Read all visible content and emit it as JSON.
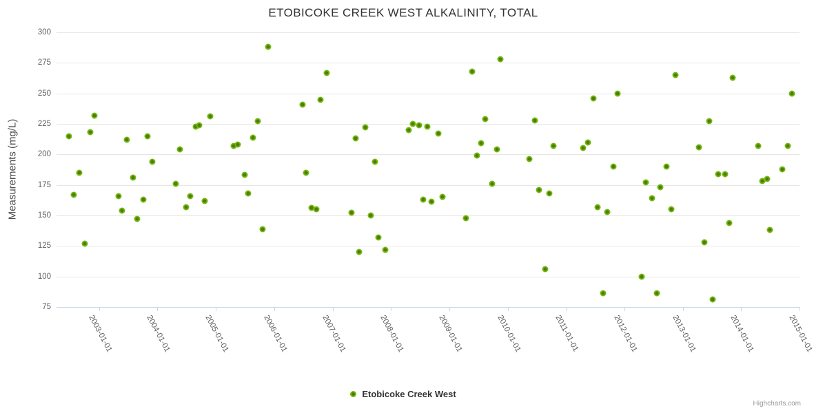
{
  "chart": {
    "credits": "Highcharts.com"
  },
  "colors": {
    "series_green_outer": "#74b70e",
    "series_green_inner": "#4c7d0a",
    "grid": "#e6e6e6",
    "axis": "#ccd6eb",
    "title_text": "#333333",
    "axis_label_text": "#606060"
  },
  "chart_data": {
    "type": "scatter",
    "title": "ETOBICOKE CREEK WEST ALKALINITY, TOTAL",
    "xlabel": "",
    "ylabel": "Measurements (mg/L)",
    "xlim": [
      2002.27,
      2015.0
    ],
    "ylim": [
      75,
      300
    ],
    "y_ticks": [
      75,
      100,
      125,
      150,
      175,
      200,
      225,
      250,
      275,
      300
    ],
    "x_ticks": [
      2003,
      2004,
      2005,
      2006,
      2007,
      2008,
      2009,
      2010,
      2011,
      2012,
      2013,
      2014,
      2015
    ],
    "x_tick_labels": [
      "2003-01-01",
      "2004-01-01",
      "2005-01-01",
      "2006-01-01",
      "2007-01-01",
      "2008-01-01",
      "2009-01-01",
      "2010-01-01",
      "2011-01-01",
      "2012-01-01",
      "2013-01-01",
      "2014-01-01",
      "2015-01-01"
    ],
    "grid": true,
    "legend_position": "bottom-center",
    "series": [
      {
        "name": "Etobicoke Creek West",
        "color": "#74b70e",
        "points": [
          [
            2002.48,
            215
          ],
          [
            2002.57,
            167
          ],
          [
            2002.66,
            185
          ],
          [
            2002.75,
            127
          ],
          [
            2002.85,
            218
          ],
          [
            2002.92,
            232
          ],
          [
            2003.33,
            166
          ],
          [
            2003.39,
            154
          ],
          [
            2003.48,
            212
          ],
          [
            2003.58,
            181
          ],
          [
            2003.65,
            147
          ],
          [
            2003.76,
            163
          ],
          [
            2003.83,
            215
          ],
          [
            2003.91,
            194
          ],
          [
            2004.31,
            176
          ],
          [
            2004.38,
            204
          ],
          [
            2004.49,
            157
          ],
          [
            2004.56,
            166
          ],
          [
            2004.66,
            223
          ],
          [
            2004.72,
            224
          ],
          [
            2004.81,
            162
          ],
          [
            2004.9,
            231
          ],
          [
            2005.3,
            207
          ],
          [
            2005.38,
            208
          ],
          [
            2005.49,
            183
          ],
          [
            2005.55,
            168
          ],
          [
            2005.64,
            214
          ],
          [
            2005.72,
            227
          ],
          [
            2005.8,
            139
          ],
          [
            2005.89,
            288
          ],
          [
            2006.48,
            241
          ],
          [
            2006.54,
            185
          ],
          [
            2006.64,
            156
          ],
          [
            2006.72,
            155
          ],
          [
            2006.79,
            245
          ],
          [
            2006.9,
            267
          ],
          [
            2007.32,
            152
          ],
          [
            2007.4,
            213
          ],
          [
            2007.46,
            120
          ],
          [
            2007.56,
            222
          ],
          [
            2007.66,
            150
          ],
          [
            2007.73,
            194
          ],
          [
            2007.79,
            132
          ],
          [
            2007.9,
            122
          ],
          [
            2008.31,
            220
          ],
          [
            2008.37,
            225
          ],
          [
            2008.48,
            224
          ],
          [
            2008.55,
            163
          ],
          [
            2008.62,
            223
          ],
          [
            2008.69,
            161
          ],
          [
            2008.81,
            217
          ],
          [
            2008.88,
            165
          ],
          [
            2009.29,
            148
          ],
          [
            2009.39,
            268
          ],
          [
            2009.47,
            199
          ],
          [
            2009.54,
            209
          ],
          [
            2009.62,
            229
          ],
          [
            2009.73,
            176
          ],
          [
            2009.81,
            204
          ],
          [
            2009.87,
            278
          ],
          [
            2010.37,
            196
          ],
          [
            2010.46,
            228
          ],
          [
            2010.54,
            171
          ],
          [
            2010.64,
            106
          ],
          [
            2010.71,
            168
          ],
          [
            2010.79,
            207
          ],
          [
            2011.29,
            205
          ],
          [
            2011.37,
            210
          ],
          [
            2011.47,
            246
          ],
          [
            2011.54,
            157
          ],
          [
            2011.63,
            86
          ],
          [
            2011.7,
            153
          ],
          [
            2011.81,
            190
          ],
          [
            2011.88,
            250
          ],
          [
            2012.3,
            100
          ],
          [
            2012.37,
            177
          ],
          [
            2012.47,
            164
          ],
          [
            2012.55,
            86
          ],
          [
            2012.62,
            173
          ],
          [
            2012.72,
            190
          ],
          [
            2012.8,
            155
          ],
          [
            2012.88,
            265
          ],
          [
            2013.28,
            206
          ],
          [
            2013.37,
            128
          ],
          [
            2013.45,
            227
          ],
          [
            2013.51,
            81
          ],
          [
            2013.61,
            184
          ],
          [
            2013.72,
            184
          ],
          [
            2013.79,
            144
          ],
          [
            2013.86,
            263
          ],
          [
            2014.29,
            207
          ],
          [
            2014.36,
            178
          ],
          [
            2014.44,
            180
          ],
          [
            2014.49,
            138
          ],
          [
            2014.71,
            188
          ],
          [
            2014.8,
            207
          ],
          [
            2014.87,
            250
          ]
        ]
      }
    ]
  }
}
